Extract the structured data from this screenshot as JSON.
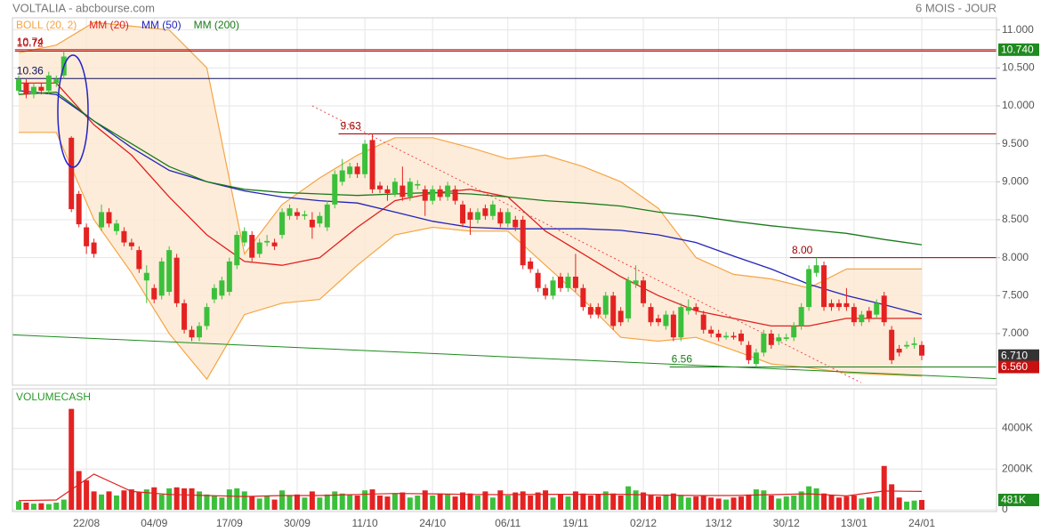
{
  "chart_data": {
    "type": "candlestick",
    "title": "VOLTALIA - abcbourse.com",
    "subtitle": "6 MOIS - JOUR",
    "categories": [
      null,
      null,
      null,
      null,
      null,
      null,
      null,
      null,
      null,
      "22/08",
      null,
      null,
      null,
      null,
      null,
      null,
      null,
      null,
      "04/09",
      null,
      null,
      null,
      null,
      null,
      null,
      null,
      null,
      null,
      "17/09",
      null,
      null,
      null,
      null,
      null,
      null,
      null,
      null,
      "30/09",
      null,
      null,
      null,
      null,
      null,
      null,
      null,
      null,
      "11/10",
      null,
      null,
      null,
      null,
      null,
      null,
      null,
      null,
      "24/10",
      null,
      null,
      null,
      null,
      null,
      null,
      null,
      null,
      null,
      "06/11",
      null,
      null,
      null,
      null,
      null,
      null,
      null,
      null,
      "19/11",
      null,
      null,
      null,
      null,
      null,
      null,
      null,
      null,
      "02/12",
      null,
      null,
      null,
      null,
      null,
      null,
      null,
      null,
      null,
      "13/12",
      null,
      null,
      null,
      null,
      null,
      null,
      null,
      null,
      "30/12",
      null,
      null,
      null,
      null,
      null,
      null,
      null,
      null,
      "13/01",
      null,
      null,
      null,
      null,
      null,
      null,
      null,
      null,
      "24/01"
    ],
    "open": [
      10.2,
      10.3,
      10.15,
      10.25,
      10.2,
      10.3,
      10.4,
      9.58,
      8.84,
      8.4,
      8.2,
      8.4,
      8.6,
      8.35,
      8.35,
      8.2,
      8.1,
      7.7,
      7.6,
      7.5,
      7.55,
      8.0,
      7.4,
      7.05,
      6.95,
      7.1,
      7.45,
      7.5,
      7.55,
      7.9,
      8.2,
      8.3,
      8.05,
      8.2,
      8.2,
      8.3,
      8.55,
      8.6,
      8.55,
      8.5,
      8.45,
      8.4,
      8.7,
      9.0,
      9.1,
      9.2,
      9.1,
      9.55,
      8.95,
      8.9,
      8.85,
      8.95,
      8.8,
      8.95,
      8.9,
      8.75,
      8.9,
      8.8,
      8.9,
      8.7,
      8.6,
      8.5,
      8.65,
      8.55,
      8.6,
      8.45,
      8.5,
      8.5,
      7.95,
      7.8,
      7.6,
      7.5,
      7.75,
      7.6,
      7.75,
      7.6,
      7.35,
      7.35,
      7.25,
      7.5,
      7.3,
      7.2,
      7.65,
      7.7,
      7.35,
      7.2,
      7.1,
      7.25,
      6.95,
      7.3,
      7.35,
      7.25,
      7.05,
      7.0,
      6.95,
      6.97,
      7.0,
      6.85,
      6.6,
      6.75,
      7.0,
      6.9,
      6.93,
      6.95,
      7.1,
      7.35,
      7.8,
      7.9,
      7.4,
      7.4,
      7.4,
      7.35,
      7.15,
      7.3,
      7.25,
      7.5,
      7.05,
      6.8,
      6.83,
      6.85,
      6.85
    ],
    "high": [
      10.4,
      10.35,
      10.3,
      10.3,
      10.45,
      10.4,
      10.72,
      9.6,
      8.88,
      8.45,
      8.25,
      8.7,
      8.65,
      8.5,
      8.4,
      8.25,
      8.15,
      7.9,
      7.65,
      8.0,
      8.15,
      8.05,
      7.45,
      7.1,
      7.15,
      7.4,
      7.65,
      7.75,
      8.0,
      8.35,
      8.4,
      8.35,
      8.25,
      8.3,
      8.25,
      8.65,
      8.7,
      8.65,
      8.62,
      8.6,
      8.6,
      8.75,
      9.15,
      9.3,
      9.25,
      9.25,
      9.55,
      9.63,
      9.0,
      8.95,
      9.05,
      9.2,
      9.05,
      9.02,
      8.95,
      8.95,
      8.95,
      9.0,
      8.95,
      8.75,
      8.65,
      8.65,
      8.7,
      8.75,
      8.65,
      8.65,
      8.55,
      8.55,
      8.0,
      7.85,
      7.65,
      7.75,
      7.8,
      7.8,
      8.05,
      7.65,
      7.4,
      7.4,
      7.55,
      7.55,
      7.35,
      7.75,
      7.9,
      7.75,
      7.4,
      7.25,
      7.3,
      7.3,
      7.4,
      7.45,
      7.4,
      7.3,
      7.1,
      7.05,
      7.02,
      7.02,
      7.05,
      6.9,
      6.8,
      7.05,
      7.05,
      7.0,
      7.0,
      7.15,
      7.4,
      7.9,
      8.0,
      7.95,
      7.45,
      7.45,
      7.6,
      7.4,
      7.3,
      7.35,
      7.45,
      7.55,
      7.1,
      6.85,
      6.9,
      6.95,
      6.9
    ],
    "low": [
      10.15,
      10.1,
      10.1,
      10.15,
      10.15,
      10.25,
      10.35,
      8.6,
      8.4,
      8.05,
      8.0,
      8.35,
      8.4,
      8.3,
      8.15,
      8.1,
      7.8,
      7.4,
      7.4,
      7.45,
      7.5,
      7.35,
      7.0,
      6.9,
      6.9,
      7.05,
      7.4,
      7.45,
      7.5,
      7.85,
      8.15,
      7.95,
      8.0,
      8.15,
      8.1,
      8.25,
      8.5,
      8.5,
      8.5,
      8.25,
      8.4,
      8.35,
      8.65,
      8.95,
      9.05,
      9.05,
      9.05,
      8.85,
      8.85,
      8.75,
      8.8,
      8.75,
      8.75,
      8.9,
      8.55,
      8.7,
      8.75,
      8.75,
      8.7,
      8.4,
      8.3,
      8.45,
      8.5,
      8.5,
      8.4,
      8.4,
      8.35,
      7.85,
      7.8,
      7.55,
      7.45,
      7.45,
      7.55,
      7.55,
      7.55,
      7.3,
      7.2,
      7.2,
      7.2,
      7.05,
      7.1,
      7.15,
      7.6,
      7.35,
      7.1,
      7.1,
      7.05,
      6.9,
      6.9,
      7.25,
      7.25,
      7.0,
      6.95,
      6.9,
      6.92,
      6.92,
      6.85,
      6.6,
      6.56,
      6.7,
      6.8,
      6.85,
      6.9,
      6.9,
      7.05,
      7.3,
      7.75,
      7.3,
      7.3,
      7.3,
      7.3,
      7.1,
      7.1,
      7.15,
      7.2,
      7.1,
      6.6,
      6.7,
      6.8,
      6.8,
      6.65
    ],
    "close": [
      10.35,
      10.15,
      10.25,
      10.2,
      10.4,
      10.35,
      10.65,
      8.64,
      8.44,
      8.15,
      8.05,
      8.6,
      8.45,
      8.45,
      8.2,
      8.15,
      7.85,
      7.8,
      7.45,
      7.95,
      8.1,
      7.4,
      7.05,
      6.95,
      7.1,
      7.35,
      7.6,
      7.7,
      7.95,
      8.3,
      8.35,
      8.0,
      8.2,
      8.22,
      8.15,
      8.6,
      8.65,
      8.55,
      8.57,
      8.4,
      8.55,
      8.7,
      9.1,
      9.15,
      9.2,
      9.1,
      9.5,
      8.9,
      8.9,
      8.85,
      9.0,
      8.8,
      9.0,
      8.97,
      8.75,
      8.9,
      8.8,
      8.95,
      8.75,
      8.45,
      8.5,
      8.6,
      8.55,
      8.7,
      8.45,
      8.6,
      8.4,
      7.9,
      7.85,
      7.6,
      7.5,
      7.7,
      7.6,
      7.75,
      7.6,
      7.35,
      7.25,
      7.25,
      7.5,
      7.1,
      7.15,
      7.7,
      7.7,
      7.4,
      7.15,
      7.15,
      7.25,
      6.95,
      7.35,
      7.35,
      7.3,
      7.05,
      7.0,
      6.95,
      6.97,
      6.95,
      6.9,
      6.65,
      6.75,
      7.0,
      6.85,
      6.95,
      6.95,
      7.1,
      7.35,
      7.85,
      7.9,
      7.35,
      7.35,
      7.35,
      7.35,
      7.15,
      7.25,
      7.2,
      7.4,
      7.15,
      6.65,
      6.75,
      6.85,
      6.87,
      6.71
    ],
    "up_color": "#3cc03c",
    "down_color": "#e42222",
    "ylim": [
      6.32,
      11.16
    ],
    "yticks": [
      {
        "value": 7,
        "label": "7.000"
      },
      {
        "value": 7.5,
        "label": "7.500"
      },
      {
        "value": 8,
        "label": "8.000"
      },
      {
        "value": 8.5,
        "label": "8.500"
      },
      {
        "value": 9,
        "label": "9.000"
      },
      {
        "value": 9.5,
        "label": "9.500"
      },
      {
        "value": 10,
        "label": "10.000"
      },
      {
        "value": 10.5,
        "label": "10.500"
      },
      {
        "value": 11,
        "label": "11.000"
      }
    ],
    "grid": true,
    "series": [
      {
        "name": "BOLL (20, 2)",
        "color": "#f5a544",
        "fill": "#fde7cf",
        "x": [
          0,
          5,
          10,
          15,
          20,
          25,
          30,
          35,
          40,
          45,
          50,
          55,
          60,
          65,
          70,
          75,
          80,
          85,
          90,
          95,
          100,
          105,
          110,
          115,
          120
        ],
        "upper": [
          10.7,
          10.8,
          11.1,
          11.05,
          11.0,
          10.5,
          8.05,
          8.7,
          9.05,
          9.35,
          9.58,
          9.58,
          9.45,
          9.3,
          9.35,
          9.2,
          9.0,
          8.65,
          8.0,
          7.78,
          7.72,
          7.6,
          7.85,
          7.85,
          7.85
        ],
        "lower": [
          9.65,
          9.65,
          8.5,
          7.8,
          7.0,
          6.4,
          7.25,
          7.4,
          7.45,
          7.9,
          8.3,
          8.4,
          8.35,
          8.35,
          7.9,
          7.45,
          6.95,
          6.9,
          6.95,
          6.78,
          6.6,
          6.55,
          6.48,
          6.46,
          6.44
        ]
      },
      {
        "name": "MM (20)",
        "color": "#e02020",
        "x": [
          0,
          5,
          10,
          15,
          20,
          25,
          30,
          35,
          40,
          45,
          50,
          55,
          60,
          65,
          70,
          75,
          80,
          85,
          90,
          95,
          100,
          105,
          110,
          115,
          120
        ],
        "values": [
          10.3,
          10.3,
          9.75,
          9.35,
          8.8,
          8.3,
          7.95,
          7.9,
          8.0,
          8.4,
          8.75,
          8.85,
          8.9,
          8.8,
          8.35,
          8.05,
          7.75,
          7.5,
          7.3,
          7.2,
          7.1,
          7.1,
          7.2,
          7.2,
          7.2
        ]
      },
      {
        "name": "MM (50)",
        "color": "#2323b8",
        "x": [
          0,
          5,
          10,
          15,
          20,
          25,
          30,
          35,
          40,
          45,
          50,
          55,
          60,
          65,
          70,
          75,
          80,
          85,
          90,
          95,
          100,
          105,
          110,
          115,
          120
        ],
        "values": [
          10.2,
          10.15,
          9.8,
          9.45,
          9.15,
          9.0,
          8.88,
          8.8,
          8.75,
          8.72,
          8.6,
          8.48,
          8.4,
          8.38,
          8.38,
          8.38,
          8.36,
          8.3,
          8.2,
          8.02,
          7.85,
          7.65,
          7.5,
          7.38,
          7.25
        ]
      },
      {
        "name": "MM (200)",
        "color": "#1a7a1a",
        "x": [
          0,
          5,
          10,
          15,
          20,
          25,
          30,
          35,
          40,
          45,
          50,
          55,
          60,
          65,
          70,
          75,
          80,
          85,
          90,
          95,
          100,
          105,
          110,
          115,
          120
        ],
        "values": [
          10.15,
          10.18,
          9.8,
          9.5,
          9.2,
          9.0,
          8.9,
          8.86,
          8.84,
          8.82,
          8.84,
          8.86,
          8.84,
          8.8,
          8.75,
          8.72,
          8.68,
          8.6,
          8.55,
          8.48,
          8.42,
          8.37,
          8.32,
          8.24,
          8.17
        ]
      }
    ],
    "levels": [
      {
        "value": 10.74,
        "label": "10.74",
        "from": 0,
        "color": "#a80000"
      },
      {
        "value": 10.72,
        "label": "10.72",
        "from": 0,
        "color": "#c81010"
      },
      {
        "value": 10.36,
        "label": "10.36",
        "from": 0,
        "color": "#10105a"
      },
      {
        "value": 9.63,
        "label": "9.63",
        "from": 43,
        "color": "#9a0000"
      },
      {
        "value": 8.0,
        "label": "8.00",
        "from": 103,
        "color": "#9a0000"
      },
      {
        "value": 6.56,
        "label": "6.56",
        "from": 87,
        "color": "#1a7a1a"
      }
    ],
    "trendlines": [
      {
        "x": [
          39,
          111
        ],
        "values": [
          10.0,
          6.4
        ],
        "color": "#e05050",
        "dash": true
      },
      {
        "x": [
          0,
          120
        ],
        "values": [
          6.98,
          6.45
        ],
        "color": "#1a8a1a",
        "dash": false
      }
    ],
    "price_tags": [
      {
        "value": 10.74,
        "label": "10.740",
        "color": "#1f8a1f"
      },
      {
        "value": 6.71,
        "label": "6.710",
        "color": "#333333"
      },
      {
        "value": 6.56,
        "label": "6.560",
        "color": "#c81010"
      }
    ],
    "volume": {
      "title": "VOLUMECASH",
      "values": [
        420000,
        350000,
        300000,
        320000,
        280000,
        350000,
        500000,
        4950000,
        1900000,
        1450000,
        900000,
        750000,
        900000,
        700000,
        950000,
        1000000,
        850000,
        1000000,
        1100000,
        750000,
        1050000,
        1100000,
        1050000,
        1050000,
        900000,
        750000,
        700000,
        600000,
        1000000,
        1050000,
        900000,
        650000,
        550000,
        700000,
        500000,
        950000,
        700000,
        750000,
        600000,
        900000,
        600000,
        750000,
        900000,
        800000,
        750000,
        700000,
        950000,
        1000000,
        700000,
        650000,
        800000,
        850000,
        600000,
        700000,
        950000,
        700000,
        800000,
        750000,
        650000,
        850000,
        800000,
        700000,
        900000,
        600000,
        950000,
        700000,
        850000,
        900000,
        700000,
        850000,
        950000,
        600000,
        750000,
        650000,
        900000,
        800000,
        700000,
        750000,
        900000,
        800000,
        700000,
        1150000,
        950000,
        850000,
        700000,
        650000,
        750000,
        800000,
        700000,
        600000,
        650000,
        700000,
        600000,
        550000,
        500000,
        600000,
        650000,
        750000,
        1000000,
        950000,
        700000,
        550000,
        650000,
        700000,
        900000,
        1150000,
        1050000,
        800000,
        700000,
        600000,
        650000,
        700000,
        550000,
        600000,
        650000,
        2150000,
        1250000,
        600000,
        400000,
        450000,
        481000
      ],
      "ylim": [
        0,
        5850000
      ],
      "yticks": [
        0,
        {
          "value": 2000000,
          "label": "2000K"
        },
        {
          "value": 4000000,
          "label": "4000K"
        }
      ],
      "average": {
        "color": "#e02020",
        "x": [
          0,
          5,
          10,
          15,
          20,
          25,
          30,
          35,
          40,
          45,
          50,
          55,
          60,
          65,
          70,
          75,
          80,
          85,
          90,
          95,
          100,
          105,
          110,
          115,
          120
        ],
        "values": [
          450000,
          480000,
          1750000,
          900000,
          750000,
          700000,
          650000,
          700000,
          700000,
          750000,
          800000,
          780000,
          750000,
          740000,
          760000,
          760000,
          760000,
          720000,
          700000,
          700000,
          740000,
          780000,
          680000,
          920000,
          900000
        ]
      },
      "tag": {
        "value": 481000,
        "label": "481K",
        "color": "#1f8a1f"
      }
    }
  }
}
